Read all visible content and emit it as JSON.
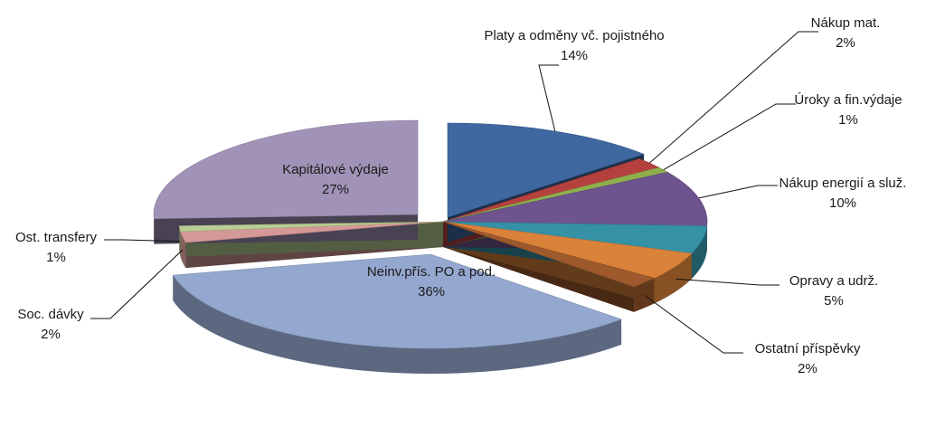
{
  "chart_data": {
    "type": "pie",
    "title": "",
    "exploded_3d": true,
    "legend": "none",
    "slices": [
      {
        "label": "Platy a odměny vč. pojistného",
        "value": 14,
        "value_label": "14%",
        "color": "#3F67A0"
      },
      {
        "label": "Nákup mat.",
        "value": 2,
        "value_label": "2%",
        "color": "#B5413E"
      },
      {
        "label": "Úroky a fin.výdaje",
        "value": 1,
        "value_label": "1%",
        "color": "#8EAF4C"
      },
      {
        "label": "Nákup energií a služ.",
        "value": 10,
        "value_label": "10%",
        "color": "#6E548F"
      },
      {
        "label": "",
        "value": 5,
        "value_label": "",
        "color": "#3592A6"
      },
      {
        "label": "Opravy a udrž.",
        "value": 5,
        "value_label": "5%",
        "color": "#DA8239"
      },
      {
        "label": "Ostatní příspěvky",
        "value": 2,
        "value_label": "2%",
        "color": "#9E5A2C"
      },
      {
        "label": "Neinv.přís. PO a pod.",
        "value": 36,
        "value_label": "36%",
        "color": "#94A8CF"
      },
      {
        "label": "Soc. dávky",
        "value": 2,
        "value_label": "2%",
        "color": "#D49896"
      },
      {
        "label": "Ost. transfery",
        "value": 1,
        "value_label": "1%",
        "color": "#B9CE92"
      },
      {
        "label": "Kapitálové výdaje",
        "value": 27,
        "value_label": "27%",
        "color": "#A193B7"
      }
    ]
  }
}
